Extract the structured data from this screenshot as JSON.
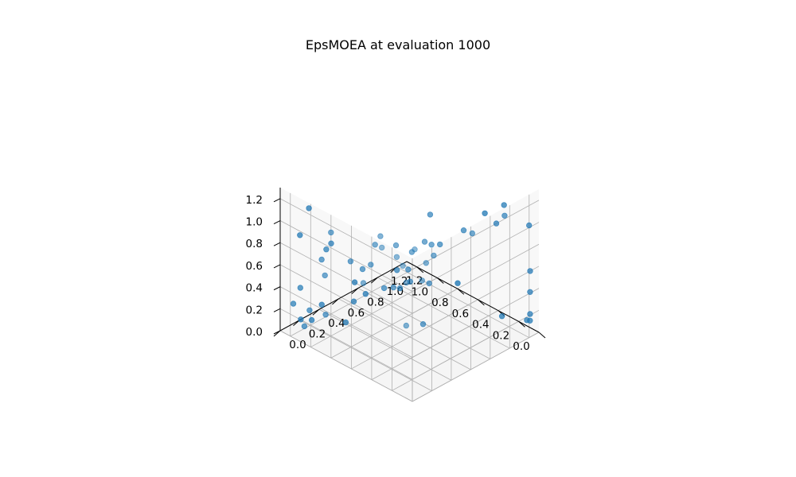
{
  "chart_data": {
    "type": "scatter",
    "projection": "3d",
    "title": "EpsMOEA at evaluation 1000",
    "xlabel": "",
    "ylabel": "",
    "zlabel": "",
    "xlim": [
      0,
      1.3
    ],
    "ylim": [
      0,
      1.3
    ],
    "zlim": [
      0,
      1.3
    ],
    "x_ticks": [
      "0.0",
      "0.2",
      "0.4",
      "0.6",
      "0.8",
      "1.0",
      "1.2"
    ],
    "y_ticks": [
      "0.0",
      "0.2",
      "0.4",
      "0.6",
      "0.8",
      "1.0",
      "1.2"
    ],
    "z_ticks": [
      "0.0",
      "0.2",
      "0.4",
      "0.6",
      "0.8",
      "1.0",
      "1.2"
    ],
    "grid": true,
    "marker_color": "#1f77b4",
    "series": [
      {
        "points": [
          [
            0.02,
            1.22,
            1.0
          ],
          [
            0.0,
            1.21,
            0.6
          ],
          [
            0.07,
            1.25,
            0.1
          ],
          [
            0.55,
            1.04,
            0.3
          ],
          [
            0.91,
            0.47,
            0.3
          ],
          [
            0.45,
            0.58,
            0.2
          ],
          [
            0.66,
            0.4,
            0.51
          ],
          [
            0.61,
            0.51,
            0.48
          ],
          [
            0.22,
            1.15,
            0.11
          ],
          [
            0.34,
            1.1,
            1.01
          ],
          [
            0.03,
            1.24,
            0.12
          ],
          [
            1.22,
            0.24,
            0.02
          ],
          [
            1.26,
            0.17,
            0.04
          ],
          [
            0.33,
            0.34,
            1.03
          ],
          [
            0.3,
            0.51,
            1.03
          ],
          [
            0.52,
            0.16,
            1.09
          ],
          [
            0.4,
            0.25,
            1.1
          ],
          [
            1.18,
            0.17,
            1.09
          ],
          [
            1.24,
            0.14,
            0.83
          ],
          [
            0.93,
            0.04,
            0.81
          ],
          [
            1.04,
            0.03,
            0.3
          ],
          [
            1.18,
            0.01,
            0.3
          ],
          [
            0.91,
            0.06,
            0.31
          ],
          [
            1.14,
            0.26,
            0.19
          ],
          [
            0.98,
            0.34,
            0.07
          ],
          [
            1.1,
            0.04,
            0.12
          ],
          [
            0.19,
            1.14,
            1.14
          ],
          [
            0.01,
            1.22,
            0.2
          ],
          [
            0.01,
            1.22,
            0.4
          ],
          [
            0.17,
            1.04,
            1.03
          ],
          [
            0.28,
            0.82,
            1.02
          ],
          [
            0.1,
            0.72,
            1.13
          ],
          [
            0.39,
            0.59,
            1.22
          ],
          [
            0.05,
            1.0,
            1.18
          ],
          [
            1.0,
            0.21,
            0.84
          ],
          [
            0.23,
            0.08,
            1.16
          ],
          [
            0.38,
            0.57,
            0.61
          ],
          [
            0.52,
            0.5,
            0.7
          ],
          [
            0.54,
            0.37,
            0.59
          ],
          [
            0.31,
            0.45,
            1.08
          ],
          [
            0.22,
            0.45,
            1.0
          ],
          [
            0.37,
            0.67,
            0.92
          ],
          [
            0.5,
            0.5,
            0.6
          ],
          [
            0.3,
            0.25,
            0.42
          ],
          [
            0.21,
            0.32,
            0.84
          ],
          [
            0.52,
            0.04,
            0.8
          ],
          [
            0.71,
            0.23,
            0.74
          ],
          [
            0.78,
            0.18,
            0.8
          ],
          [
            0.86,
            0.0,
            0.72
          ],
          [
            0.26,
            0.21,
            0.85
          ],
          [
            0.61,
            0.21,
            0.84
          ],
          [
            0.64,
            0.51,
            0.63
          ],
          [
            0.8,
            0.0,
            1.14
          ],
          [
            0.93,
            0.37,
            0.27
          ],
          [
            0.17,
            0.08,
            1.11
          ],
          [
            0.2,
            0.35,
            0.99
          ],
          [
            0.12,
            0.15,
            1.25
          ],
          [
            0.3,
            0.0,
            1.25
          ],
          [
            0.4,
            0.09,
            1.26
          ],
          [
            1.14,
            0.04,
            0.45
          ],
          [
            1.0,
            0.16,
            0.81
          ],
          [
            0.96,
            0.41,
            0.41
          ]
        ]
      }
    ]
  }
}
